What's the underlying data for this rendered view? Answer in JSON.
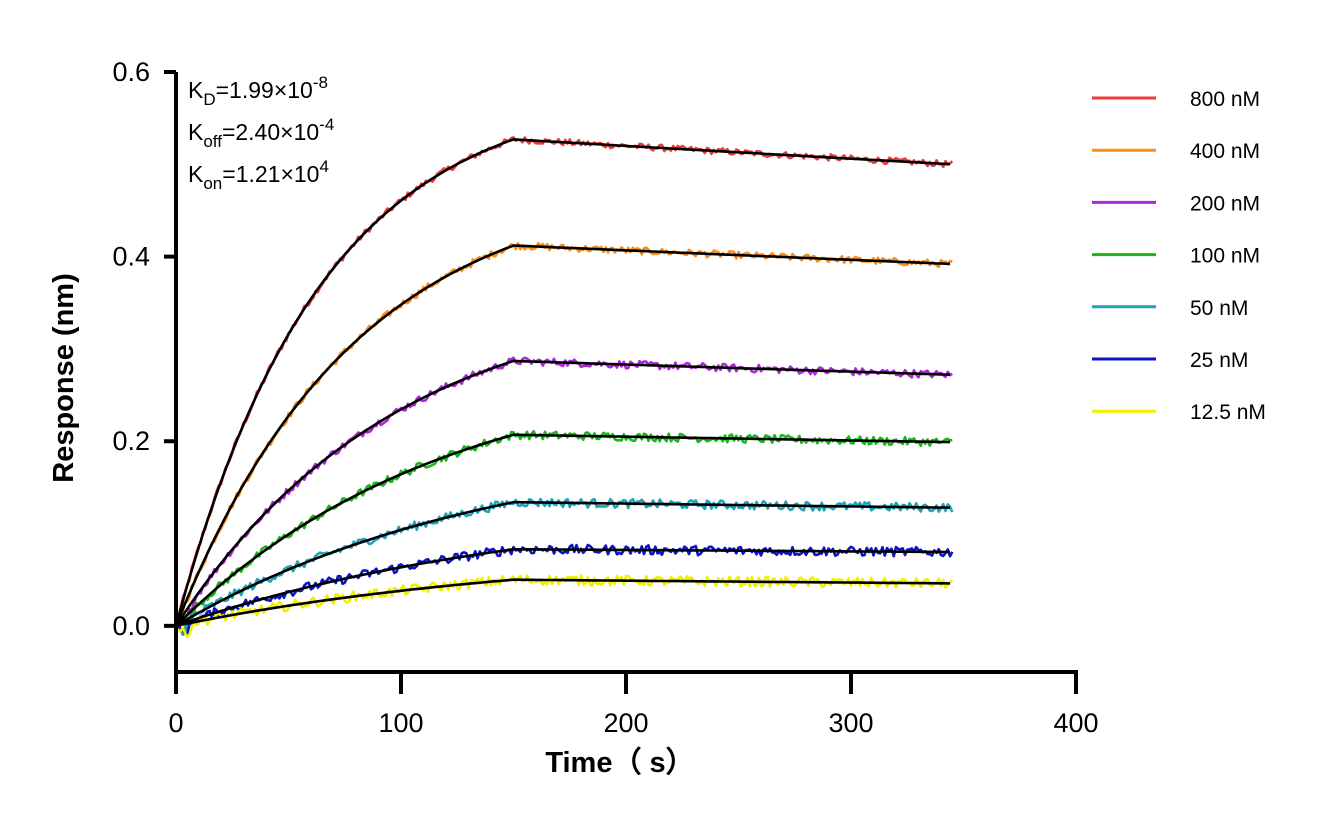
{
  "chart_data": {
    "type": "line",
    "xlabel": "Time（ s）",
    "ylabel": "Response (nm)",
    "xlim": [
      0,
      400
    ],
    "ylim": [
      -0.05,
      0.6
    ],
    "xticks": [
      "0",
      "100",
      "200",
      "300",
      "400"
    ],
    "yticks": [
      "0.0",
      "0.2",
      "0.4",
      "0.6"
    ],
    "legend_position": "right",
    "association_end_s": 150,
    "x_end_s": 345,
    "annotations": {
      "kd": {
        "symbol": "K",
        "sub": "D",
        "mantissa": "=1.99×10",
        "exp": "-8"
      },
      "koff": {
        "symbol": "K",
        "sub": "off",
        "mantissa": "=2.40×10",
        "exp": "-4"
      },
      "kon": {
        "symbol": "K",
        "sub": "on",
        "mantissa": "=1.21×10",
        "exp": "4"
      }
    },
    "fit_color": "#000000",
    "series": [
      {
        "name": "800 nM",
        "color": "#ee3b3b",
        "peak": 0.527,
        "end": 0.5
      },
      {
        "name": "400 nM",
        "color": "#ff8c1a",
        "peak": 0.412,
        "end": 0.392
      },
      {
        "name": "200 nM",
        "color": "#b026d9",
        "peak": 0.287,
        "end": 0.272
      },
      {
        "name": "100 nM",
        "color": "#18b818",
        "peak": 0.207,
        "end": 0.199
      },
      {
        "name": "50 nM",
        "color": "#1fa3b8",
        "peak": 0.134,
        "end": 0.128
      },
      {
        "name": "25 nM",
        "color": "#0a14c8",
        "peak": 0.083,
        "end": 0.08
      },
      {
        "name": "12.5 nM",
        "color": "#f0f000",
        "peak": 0.05,
        "end": 0.046
      }
    ]
  }
}
